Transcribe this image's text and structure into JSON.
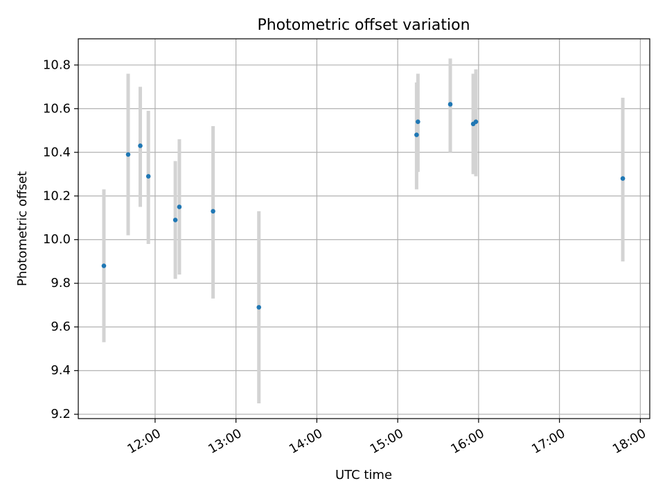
{
  "chart_data": {
    "type": "scatter",
    "title": "Photometric offset variation",
    "xlabel": "UTC time",
    "ylabel": "Photometric offset",
    "xlim": [
      "11:03",
      "18:07"
    ],
    "ylim": [
      9.18,
      10.92
    ],
    "xticks": [
      "12:00",
      "13:00",
      "14:00",
      "15:00",
      "16:00",
      "17:00",
      "18:00"
    ],
    "yticks": [
      "9.2",
      "9.4",
      "9.6",
      "9.8",
      "10.0",
      "10.2",
      "10.4",
      "10.6",
      "10.8"
    ],
    "grid": true,
    "series": [
      {
        "marker_color": "#1f77b4",
        "errorbar_color": "#d3d3d3",
        "points": [
          {
            "x": "11:22",
            "y": 9.88,
            "ylow": 9.53,
            "yhigh": 10.23
          },
          {
            "x": "11:40",
            "y": 10.39,
            "ylow": 10.02,
            "yhigh": 10.76
          },
          {
            "x": "11:49",
            "y": 10.43,
            "ylow": 10.15,
            "yhigh": 10.7
          },
          {
            "x": "11:55",
            "y": 10.29,
            "ylow": 9.98,
            "yhigh": 10.59
          },
          {
            "x": "12:15",
            "y": 10.09,
            "ylow": 9.82,
            "yhigh": 10.36
          },
          {
            "x": "12:18",
            "y": 10.15,
            "ylow": 9.84,
            "yhigh": 10.46
          },
          {
            "x": "12:43",
            "y": 10.13,
            "ylow": 9.73,
            "yhigh": 10.52
          },
          {
            "x": "13:17",
            "y": 9.69,
            "ylow": 9.25,
            "yhigh": 10.13
          },
          {
            "x": "15:14",
            "y": 10.48,
            "ylow": 10.23,
            "yhigh": 10.72
          },
          {
            "x": "15:15",
            "y": 10.54,
            "ylow": 10.31,
            "yhigh": 10.76
          },
          {
            "x": "15:39",
            "y": 10.62,
            "ylow": 10.4,
            "yhigh": 10.83
          },
          {
            "x": "15:56",
            "y": 10.53,
            "ylow": 10.3,
            "yhigh": 10.76
          },
          {
            "x": "15:58",
            "y": 10.54,
            "ylow": 10.29,
            "yhigh": 10.78
          },
          {
            "x": "17:47",
            "y": 10.28,
            "ylow": 9.9,
            "yhigh": 10.65
          }
        ]
      }
    ]
  }
}
